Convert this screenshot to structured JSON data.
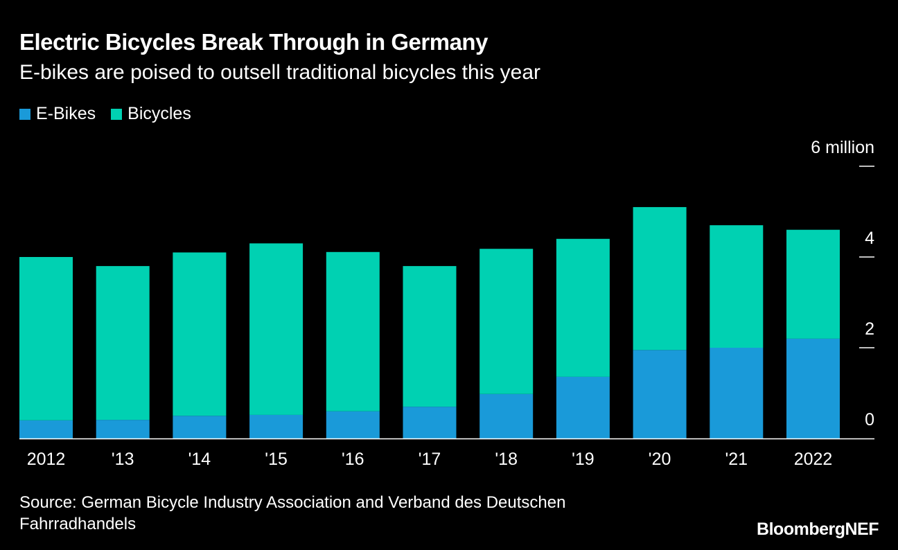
{
  "chart_data": {
    "type": "bar",
    "stacked": true,
    "title": "Electric Bicycles Break Through in Germany",
    "subtitle": "E-bikes are poised to outsell traditional bicycles this year",
    "categories": [
      "2012",
      "'13",
      "'14",
      "'15",
      "'16",
      "'17",
      "'18",
      "'19",
      "'20",
      "'21",
      "2022"
    ],
    "series": [
      {
        "name": "E-Bikes",
        "color": "#1a9ad9",
        "values": [
          0.4,
          0.41,
          0.5,
          0.52,
          0.6,
          0.7,
          0.98,
          1.36,
          1.95,
          2.0,
          2.2
        ]
      },
      {
        "name": "Bicycles",
        "color": "#00d1b2",
        "values": [
          3.6,
          3.39,
          3.6,
          3.78,
          3.51,
          3.1,
          3.2,
          3.04,
          3.15,
          2.7,
          2.4
        ]
      }
    ],
    "ylim": [
      0,
      6
    ],
    "yticks": [
      {
        "value": 0,
        "label": "0"
      },
      {
        "value": 2,
        "label": "2"
      },
      {
        "value": 4,
        "label": "4"
      },
      {
        "value": 6,
        "label": "6 million"
      }
    ],
    "y_axis_position": "right",
    "grid": false,
    "legend_position": "top-left",
    "source": "Source: German Bicycle Industry Association and Verband des Deutschen Fahrradhandels",
    "logo": "BloombergNEF"
  }
}
